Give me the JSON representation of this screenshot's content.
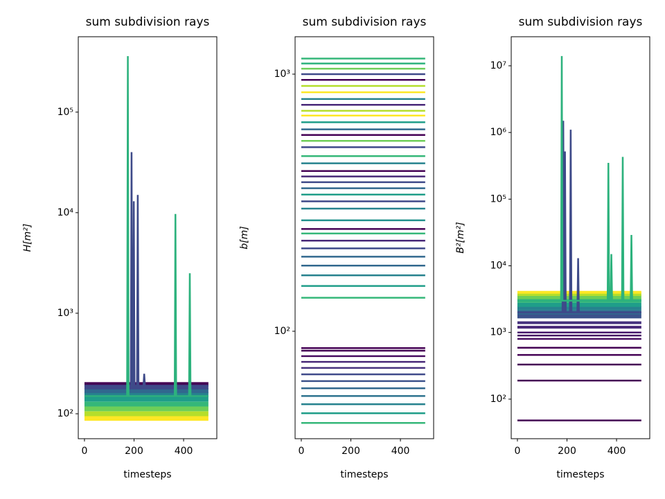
{
  "chart_data": [
    {
      "type": "line",
      "title": "sum subdivision rays",
      "xlabel": "timesteps",
      "ylabel": "H[m²]",
      "yscale": "log",
      "xlim": [
        -25,
        534
      ],
      "xticks": [
        0,
        200,
        400
      ],
      "ylim": [
        56.5,
        562000
      ],
      "yticks": [
        {
          "value": 100,
          "label": "10²"
        },
        {
          "value": 1000,
          "label": "10³"
        },
        {
          "value": 10000,
          "label": "10⁴"
        },
        {
          "value": 100000,
          "label": "10⁵"
        }
      ],
      "series": [
        {
          "color": "#fde725",
          "linewidth": 7,
          "x": [
            0,
            500
          ],
          "values": [
            90,
            90
          ]
        },
        {
          "color": "#b5de2b",
          "linewidth": 7,
          "x": [
            0,
            500
          ],
          "values": [
            100,
            100
          ]
        },
        {
          "color": "#6ece58",
          "linewidth": 7,
          "x": [
            0,
            500
          ],
          "values": [
            112,
            112
          ]
        },
        {
          "color": "#35b779",
          "linewidth": 7,
          "x": [
            0,
            500
          ],
          "values": [
            125,
            125
          ]
        },
        {
          "color": "#1f9e89",
          "linewidth": 7,
          "x": [
            0,
            500
          ],
          "values": [
            140,
            140
          ]
        },
        {
          "color": "#26828e",
          "linewidth": 7,
          "x": [
            0,
            500
          ],
          "values": [
            155,
            155
          ]
        },
        {
          "color": "#31688e",
          "linewidth": 7,
          "x": [
            0,
            500
          ],
          "values": [
            170,
            170
          ]
        },
        {
          "color": "#3e4989",
          "linewidth": 7,
          "x": [
            0,
            500
          ],
          "values": [
            185,
            185
          ]
        },
        {
          "color": "#440154",
          "linewidth": 4,
          "x": [
            0,
            500
          ],
          "values": [
            200,
            200
          ]
        },
        {
          "color": "#3e4a89",
          "linewidth": 2.5,
          "x": [
            0,
            187,
            190,
            193,
            196,
            199,
            202,
            212,
            215,
            218,
            238,
            241,
            244,
            500
          ],
          "values": [
            190,
            190,
            40000,
            190,
            190,
            13000,
            190,
            190,
            15000,
            190,
            190,
            250,
            190,
            190
          ]
        },
        {
          "color": "#2db27d",
          "linewidth": 2.5,
          "x": [
            0,
            172,
            175,
            178,
            364,
            367,
            370,
            422,
            425,
            428,
            500
          ],
          "values": [
            150,
            150,
            360000,
            150,
            150,
            9700,
            150,
            150,
            2500,
            150,
            150
          ]
        }
      ]
    },
    {
      "type": "line",
      "title": "sum subdivision rays",
      "xlabel": "timesteps",
      "ylabel": "b[m]",
      "yscale": "log",
      "xlim": [
        -25,
        534
      ],
      "xticks": [
        0,
        200,
        400
      ],
      "ylim": [
        38.2,
        1398
      ],
      "yticks": [
        {
          "value": 100,
          "label": "10²"
        },
        {
          "value": 1000,
          "label": "10³"
        }
      ],
      "series": [
        {
          "color": "#35b779",
          "x": [
            0,
            500
          ],
          "values": [
            1150,
            1150
          ]
        },
        {
          "color": "#2db27d",
          "x": [
            0,
            500
          ],
          "values": [
            1100,
            1100
          ]
        },
        {
          "color": "#6ece58",
          "x": [
            0,
            500
          ],
          "values": [
            1050,
            1050
          ]
        },
        {
          "color": "#3e4989",
          "x": [
            0,
            500
          ],
          "values": [
            1000,
            1000
          ]
        },
        {
          "color": "#440154",
          "x": [
            0,
            500
          ],
          "values": [
            950,
            950
          ]
        },
        {
          "color": "#b5de2b",
          "x": [
            0,
            500
          ],
          "values": [
            900,
            900
          ]
        },
        {
          "color": "#fde725",
          "x": [
            0,
            500
          ],
          "values": [
            850,
            850
          ]
        },
        {
          "color": "#26828e",
          "x": [
            0,
            500
          ],
          "values": [
            800,
            800
          ]
        },
        {
          "color": "#482878",
          "x": [
            0,
            500
          ],
          "values": [
            760,
            760
          ]
        },
        {
          "color": "#b5de2b",
          "x": [
            0,
            500
          ],
          "values": [
            720,
            720
          ]
        },
        {
          "color": "#fde725",
          "x": [
            0,
            500
          ],
          "values": [
            690,
            690
          ]
        },
        {
          "color": "#1f9e89",
          "x": [
            0,
            500
          ],
          "values": [
            650,
            650
          ]
        },
        {
          "color": "#31688e",
          "x": [
            0,
            500
          ],
          "values": [
            610,
            610
          ]
        },
        {
          "color": "#440154",
          "x": [
            0,
            500
          ],
          "values": [
            580,
            580
          ]
        },
        {
          "color": "#6ece58",
          "x": [
            0,
            500
          ],
          "values": [
            550,
            550
          ]
        },
        {
          "color": "#3e4989",
          "x": [
            0,
            500
          ],
          "values": [
            520,
            520
          ]
        },
        {
          "color": "#35b779",
          "x": [
            0,
            500
          ],
          "values": [
            480,
            480
          ]
        },
        {
          "color": "#26828e",
          "x": [
            0,
            500
          ],
          "values": [
            450,
            450
          ]
        },
        {
          "color": "#440154",
          "x": [
            0,
            500
          ],
          "values": [
            420,
            420
          ]
        },
        {
          "color": "#482878",
          "x": [
            0,
            500
          ],
          "values": [
            400,
            400
          ]
        },
        {
          "color": "#3e4989",
          "x": [
            0,
            500
          ],
          "values": [
            380,
            380
          ]
        },
        {
          "color": "#31688e",
          "x": [
            0,
            500
          ],
          "values": [
            360,
            360
          ]
        },
        {
          "color": "#1f9e89",
          "x": [
            0,
            500
          ],
          "values": [
            340,
            340
          ]
        },
        {
          "color": "#3e4989",
          "x": [
            0,
            500
          ],
          "values": [
            320,
            320
          ]
        },
        {
          "color": "#26828e",
          "x": [
            0,
            500
          ],
          "values": [
            300,
            300
          ]
        },
        {
          "color": "#21918c",
          "x": [
            0,
            500
          ],
          "values": [
            270,
            270
          ]
        },
        {
          "color": "#440154",
          "x": [
            0,
            500
          ],
          "values": [
            250,
            250
          ]
        },
        {
          "color": "#35b779",
          "x": [
            0,
            500
          ],
          "values": [
            240,
            240
          ]
        },
        {
          "color": "#482878",
          "x": [
            0,
            500
          ],
          "values": [
            225,
            225
          ]
        },
        {
          "color": "#3e4989",
          "x": [
            0,
            500
          ],
          "values": [
            210,
            210
          ]
        },
        {
          "color": "#31688e",
          "x": [
            0,
            500
          ],
          "values": [
            195,
            195
          ]
        },
        {
          "color": "#31688e",
          "x": [
            0,
            500
          ],
          "values": [
            180,
            180
          ]
        },
        {
          "color": "#26828e",
          "x": [
            0,
            500
          ],
          "values": [
            165,
            165
          ]
        },
        {
          "color": "#1f9e89",
          "x": [
            0,
            500
          ],
          "values": [
            150,
            150
          ]
        },
        {
          "color": "#35b779",
          "x": [
            0,
            500
          ],
          "values": [
            135,
            135
          ]
        },
        {
          "color": "#440154",
          "x": [
            0,
            500
          ],
          "values": [
            86,
            86
          ]
        },
        {
          "color": "#440154",
          "x": [
            0,
            500
          ],
          "values": [
            84,
            84
          ]
        },
        {
          "color": "#470d60",
          "x": [
            0,
            500
          ],
          "values": [
            80,
            80
          ]
        },
        {
          "color": "#482878",
          "x": [
            0,
            500
          ],
          "values": [
            76,
            76
          ]
        },
        {
          "color": "#46327e",
          "x": [
            0,
            500
          ],
          "values": [
            72,
            72
          ]
        },
        {
          "color": "#3e4989",
          "x": [
            0,
            500
          ],
          "values": [
            68,
            68
          ]
        },
        {
          "color": "#3b528b",
          "x": [
            0,
            500
          ],
          "values": [
            64,
            64
          ]
        },
        {
          "color": "#31688e",
          "x": [
            0,
            500
          ],
          "values": [
            60,
            60
          ]
        },
        {
          "color": "#2c728e",
          "x": [
            0,
            500
          ],
          "values": [
            56,
            56
          ]
        },
        {
          "color": "#26828e",
          "x": [
            0,
            500
          ],
          "values": [
            52,
            52
          ]
        },
        {
          "color": "#1f9e89",
          "x": [
            0,
            500
          ],
          "values": [
            48,
            48
          ]
        },
        {
          "color": "#35b779",
          "x": [
            0,
            500
          ],
          "values": [
            44,
            44
          ]
        }
      ]
    },
    {
      "type": "line",
      "title": "sum subdivision rays",
      "xlabel": "timesteps",
      "ylabel": "B²[m²]",
      "yscale": "log",
      "xlim": [
        -25,
        534
      ],
      "xticks": [
        0,
        200,
        400
      ],
      "ylim": [
        25.5,
        27300000
      ],
      "yticks": [
        {
          "value": 100,
          "label": "10²"
        },
        {
          "value": 1000,
          "label": "10³"
        },
        {
          "value": 10000,
          "label": "10⁴"
        },
        {
          "value": 100000,
          "label": "10⁵"
        },
        {
          "value": 1000000,
          "label": "10⁶"
        },
        {
          "value": 10000000,
          "label": "10⁷"
        }
      ],
      "series": [
        {
          "color": "#440154",
          "x": [
            0,
            500
          ],
          "values": [
            48,
            48
          ]
        },
        {
          "color": "#440154",
          "x": [
            0,
            500
          ],
          "values": [
            190,
            190
          ]
        },
        {
          "color": "#440154",
          "x": [
            0,
            500
          ],
          "values": [
            330,
            330
          ]
        },
        {
          "color": "#440154",
          "x": [
            0,
            500
          ],
          "values": [
            460,
            460
          ]
        },
        {
          "color": "#440154",
          "x": [
            0,
            500
          ],
          "values": [
            590,
            590
          ]
        },
        {
          "color": "#470d60",
          "x": [
            0,
            500
          ],
          "values": [
            800,
            800
          ]
        },
        {
          "color": "#471365",
          "x": [
            0,
            500
          ],
          "values": [
            900,
            900
          ]
        },
        {
          "color": "#481a6c",
          "x": [
            0,
            500
          ],
          "values": [
            1000,
            1000
          ]
        },
        {
          "color": "#482878",
          "linewidth": 4,
          "x": [
            0,
            500
          ],
          "values": [
            1200,
            1200
          ]
        },
        {
          "color": "#46327e",
          "linewidth": 4,
          "x": [
            0,
            500
          ],
          "values": [
            1400,
            1400
          ]
        },
        {
          "color": "#3b528b",
          "linewidth": 6,
          "x": [
            0,
            500
          ],
          "values": [
            1750,
            1750
          ]
        },
        {
          "color": "#31688e",
          "linewidth": 6,
          "x": [
            0,
            500
          ],
          "values": [
            2000,
            2000
          ]
        },
        {
          "color": "#26828e",
          "linewidth": 6,
          "x": [
            0,
            500
          ],
          "values": [
            2300,
            2300
          ]
        },
        {
          "color": "#1f9e89",
          "linewidth": 6,
          "x": [
            0,
            500
          ],
          "values": [
            2600,
            2600
          ]
        },
        {
          "color": "#35b779",
          "linewidth": 6,
          "x": [
            0,
            500
          ],
          "values": [
            3000,
            3000
          ]
        },
        {
          "color": "#6ece58",
          "linewidth": 6,
          "x": [
            0,
            500
          ],
          "values": [
            3400,
            3400
          ]
        },
        {
          "color": "#b5de2b",
          "linewidth": 5,
          "x": [
            0,
            500
          ],
          "values": [
            3750,
            3750
          ]
        },
        {
          "color": "#fde725",
          "linewidth": 4,
          "x": [
            0,
            500
          ],
          "values": [
            4000,
            4000
          ]
        },
        {
          "color": "#3e4a89",
          "linewidth": 2.5,
          "x": [
            0,
            182,
            185,
            188,
            189,
            192,
            195,
            212,
            215,
            218,
            242,
            245,
            248,
            500
          ],
          "values": [
            2000,
            2000,
            1500000,
            2000,
            2000,
            520000,
            2000,
            2000,
            1100000,
            2000,
            2000,
            13000,
            2000,
            2000
          ]
        },
        {
          "color": "#2db27d",
          "linewidth": 2.5,
          "x": [
            0,
            176,
            179,
            182,
            364,
            367,
            370,
            376,
            379,
            382,
            422,
            425,
            428,
            457,
            460,
            463,
            500
          ],
          "values": [
            3000,
            3000,
            14000000,
            3000,
            3000,
            350000,
            3000,
            3000,
            15000,
            3000,
            3000,
            430000,
            3000,
            3000,
            29000,
            3000,
            3000
          ]
        }
      ]
    }
  ]
}
